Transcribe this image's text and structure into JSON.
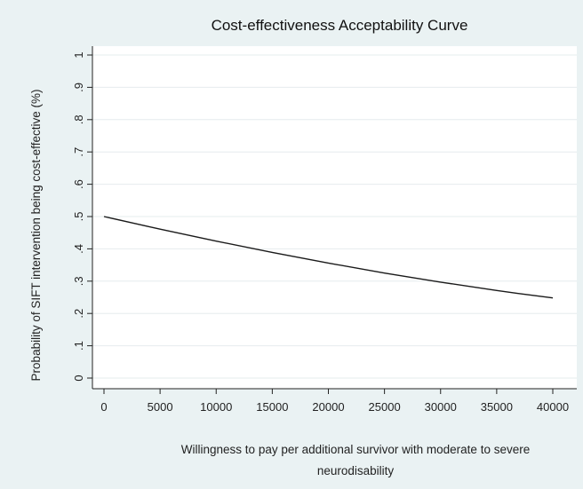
{
  "chart_data": {
    "type": "line",
    "title": "Cost-effectiveness Acceptability Curve",
    "xlabel_lines": [
      "Willingness  to pay per additional survivor with moderate to severe",
      "neurodisability"
    ],
    "ylabel": "Probability of SIFT intervention being cost-effective (%)",
    "xlim": [
      0,
      40000
    ],
    "ylim": [
      0,
      1
    ],
    "x_ticks": [
      0,
      5000,
      10000,
      15000,
      20000,
      25000,
      30000,
      35000,
      40000
    ],
    "x_tick_labels": [
      "0",
      "5000",
      "10000",
      "15000",
      "20000",
      "25000",
      "30000",
      "35000",
      "40000"
    ],
    "y_ticks": [
      0,
      0.1,
      0.2,
      0.3,
      0.4,
      0.5,
      0.6,
      0.7,
      0.8,
      0.9,
      1
    ],
    "y_tick_labels": [
      "0",
      ".1",
      ".2",
      ".3",
      ".4",
      ".5",
      ".6",
      ".7",
      ".8",
      ".9",
      "1"
    ],
    "grid": true,
    "series": [
      {
        "x": [
          0,
          5000,
          10000,
          15000,
          20000,
          25000,
          30000,
          35000,
          40000
        ],
        "y": [
          0.5,
          0.461,
          0.424,
          0.389,
          0.356,
          0.325,
          0.297,
          0.271,
          0.248
        ]
      }
    ],
    "colors": {
      "line": "#1a1a1a",
      "grid": "#e6ecee",
      "background": "#eaf2f3",
      "plot": "#ffffff"
    }
  }
}
